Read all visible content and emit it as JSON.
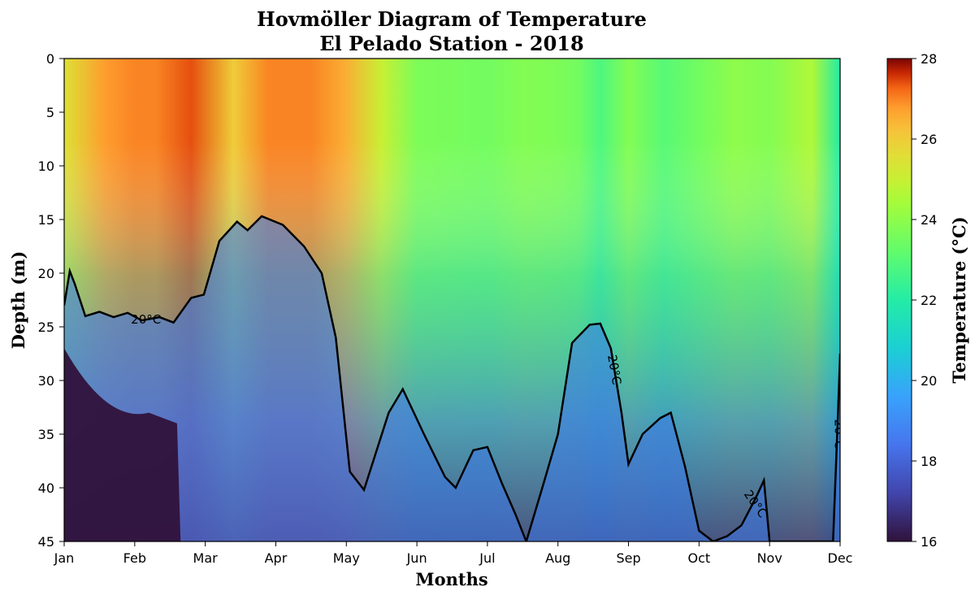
{
  "chart_data": {
    "type": "heatmap",
    "title": [
      "Hovmöller Diagram of Temperature",
      "El Pelado Station - 2018"
    ],
    "xlabel": "Months",
    "ylabel": "Depth (m)",
    "colorbar_label": "Temperature (°C)",
    "colormap": "turbo",
    "x_ticks": [
      "Jan",
      "Feb",
      "Mar",
      "Apr",
      "May",
      "Jun",
      "Jul",
      "Aug",
      "Sep",
      "Oct",
      "Nov",
      "Dec"
    ],
    "y_ticks": [
      "0",
      "5",
      "10",
      "15",
      "20",
      "25",
      "30",
      "35",
      "40",
      "45"
    ],
    "ylim": [
      45,
      0
    ],
    "xlim": [
      0,
      11
    ],
    "colorbar_range": [
      16,
      28
    ],
    "colorbar_ticks": [
      "16",
      "18",
      "20",
      "22",
      "24",
      "26",
      "28"
    ],
    "surface_temperature": [
      [
        0.0,
        25.5
      ],
      [
        0.6,
        26.8
      ],
      [
        1.0,
        27.0
      ],
      [
        1.3,
        27.0
      ],
      [
        1.8,
        27.4
      ],
      [
        2.4,
        26.0
      ],
      [
        2.9,
        27.0
      ],
      [
        3.5,
        27.0
      ],
      [
        4.0,
        26.5
      ],
      [
        4.5,
        25.0
      ],
      [
        5.0,
        23.7
      ],
      [
        5.5,
        23.6
      ],
      [
        6.0,
        23.5
      ],
      [
        6.5,
        23.8
      ],
      [
        7.0,
        23.7
      ],
      [
        7.3,
        23.5
      ],
      [
        7.6,
        22.8
      ],
      [
        8.0,
        23.8
      ],
      [
        8.5,
        23.0
      ],
      [
        9.0,
        23.5
      ],
      [
        9.5,
        24.0
      ],
      [
        10.0,
        23.8
      ],
      [
        10.6,
        24.6
      ],
      [
        11.0,
        22.0
      ]
    ],
    "contour_20C_depth": [
      [
        0.0,
        23.0
      ],
      [
        0.08,
        19.8
      ],
      [
        0.15,
        21.0
      ],
      [
        0.3,
        24.0
      ],
      [
        0.5,
        23.6
      ],
      [
        0.7,
        24.1
      ],
      [
        0.9,
        23.7
      ],
      [
        1.1,
        24.4
      ],
      [
        1.35,
        24.1
      ],
      [
        1.55,
        24.6
      ],
      [
        1.8,
        22.3
      ],
      [
        1.98,
        22.0
      ],
      [
        2.2,
        17.0
      ],
      [
        2.45,
        15.2
      ],
      [
        2.6,
        16.0
      ],
      [
        2.8,
        14.7
      ],
      [
        3.1,
        15.5
      ],
      [
        3.4,
        17.5
      ],
      [
        3.65,
        20.0
      ],
      [
        3.85,
        26.0
      ],
      [
        4.05,
        38.5
      ],
      [
        4.25,
        40.2
      ],
      [
        4.6,
        33.0
      ],
      [
        4.8,
        30.8
      ],
      [
        5.1,
        35.0
      ],
      [
        5.4,
        39.0
      ],
      [
        5.55,
        40.0
      ],
      [
        5.8,
        36.5
      ],
      [
        6.0,
        36.2
      ],
      [
        6.2,
        39.5
      ],
      [
        6.4,
        42.5
      ],
      [
        6.55,
        45.0
      ],
      [
        6.8,
        39.5
      ],
      [
        7.0,
        35.0
      ],
      [
        7.2,
        26.5
      ],
      [
        7.45,
        24.8
      ],
      [
        7.6,
        24.7
      ],
      [
        7.75,
        27.0
      ],
      [
        7.9,
        33.0
      ],
      [
        8.0,
        37.8
      ],
      [
        8.2,
        35.0
      ],
      [
        8.45,
        33.5
      ],
      [
        8.6,
        33.0
      ],
      [
        8.8,
        38.0
      ],
      [
        9.0,
        44.0
      ],
      [
        9.2,
        45.0
      ],
      [
        9.4,
        44.5
      ],
      [
        9.6,
        43.5
      ],
      [
        9.8,
        41.0
      ],
      [
        9.92,
        39.3
      ],
      [
        10.0,
        45.0
      ],
      [
        10.9,
        45.0
      ],
      [
        10.97,
        33.0
      ],
      [
        11.0,
        27.5
      ]
    ],
    "contour_label": "20°C",
    "contour_labels_at": [
      [
        1.16,
        24.3,
        0
      ],
      [
        7.8,
        29.0,
        80
      ],
      [
        9.8,
        41.5,
        55
      ],
      [
        10.98,
        35.0,
        90
      ]
    ]
  }
}
